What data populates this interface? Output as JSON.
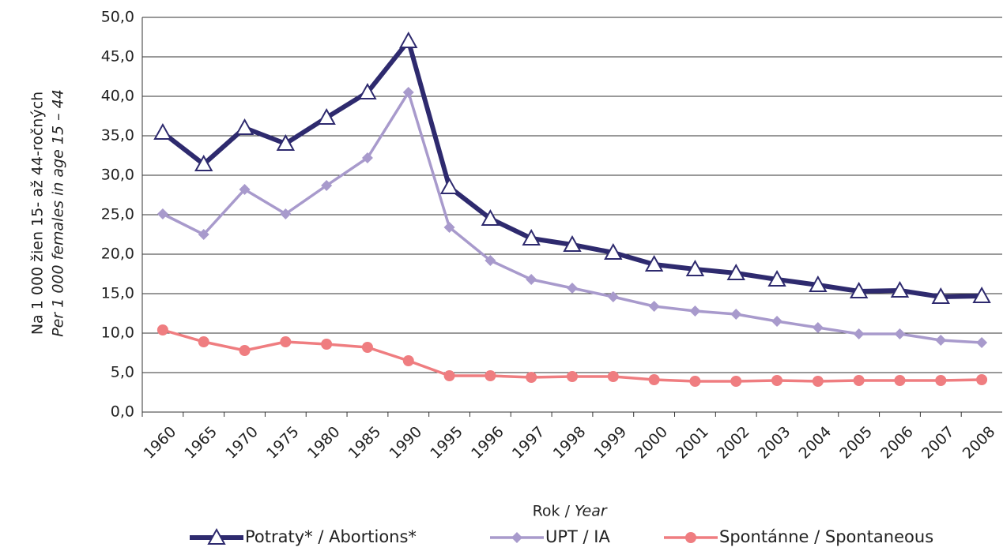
{
  "chart_data": {
    "type": "line",
    "y_label": [
      "Na 1 000 žien 15- až 44-ročných",
      "Per 1 000 females in age 15 – 44"
    ],
    "x_label": [
      "Rok /",
      "Year"
    ],
    "categories": [
      "1960",
      "1965",
      "1970",
      "1975",
      "1980",
      "1985",
      "1990",
      "1995",
      "1996",
      "1997",
      "1998",
      "1999",
      "2000",
      "2001",
      "2002",
      "2003",
      "2004",
      "2005",
      "2006",
      "2007",
      "2008"
    ],
    "series": [
      {
        "name": "Potraty* / Abortions*",
        "color": "#2e2a6e",
        "marker": "triangle",
        "values": [
          35.4,
          31.4,
          36.0,
          34.0,
          37.3,
          40.5,
          47.0,
          28.5,
          24.5,
          22.0,
          21.2,
          20.2,
          18.7,
          18.1,
          17.6,
          16.8,
          16.1,
          15.3,
          15.4,
          14.6,
          14.7
        ]
      },
      {
        "name": "UPT / IA",
        "color": "#a89acc",
        "marker": "diamond",
        "values": [
          25.1,
          22.5,
          28.2,
          25.1,
          28.7,
          32.2,
          40.5,
          23.4,
          19.2,
          16.8,
          15.7,
          14.6,
          13.4,
          12.8,
          12.4,
          11.5,
          10.7,
          9.9,
          9.9,
          9.1,
          8.8
        ]
      },
      {
        "name": "Spontánne / Spontaneous",
        "color": "#ef7d80",
        "marker": "circle",
        "values": [
          10.4,
          8.9,
          7.8,
          8.9,
          8.6,
          8.2,
          6.5,
          4.6,
          4.6,
          4.4,
          4.5,
          4.5,
          4.1,
          3.9,
          3.9,
          4.0,
          3.9,
          4.0,
          4.0,
          4.0,
          4.1
        ]
      }
    ],
    "ylim": [
      0,
      50
    ],
    "yticks": [
      {
        "value": 0,
        "label": "0,0"
      },
      {
        "value": 5,
        "label": "5,0"
      },
      {
        "value": 10,
        "label": "10,0"
      },
      {
        "value": 15,
        "label": "15,0"
      },
      {
        "value": 20,
        "label": "20,0"
      },
      {
        "value": 25,
        "label": "25,0"
      },
      {
        "value": 30,
        "label": "30,0"
      },
      {
        "value": 35,
        "label": "35,0"
      },
      {
        "value": 40,
        "label": "40,0"
      },
      {
        "value": 45,
        "label": "45,0"
      },
      {
        "value": 50,
        "label": "50,0"
      }
    ],
    "grid": true,
    "legend": "bottom"
  }
}
